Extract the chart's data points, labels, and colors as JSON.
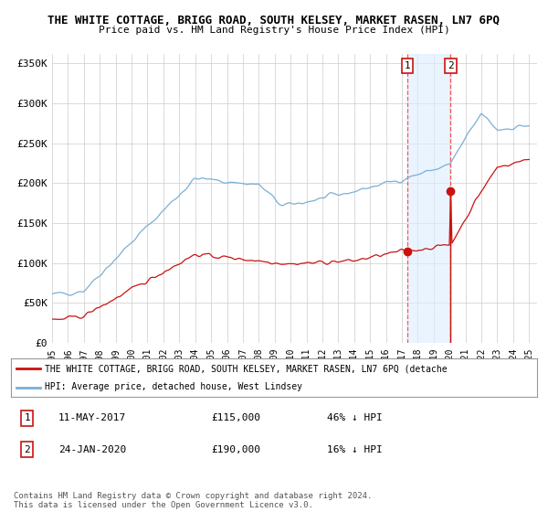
{
  "title": "THE WHITE COTTAGE, BRIGG ROAD, SOUTH KELSEY, MARKET RASEN, LN7 6PQ",
  "subtitle": "Price paid vs. HM Land Registry's House Price Index (HPI)",
  "ylabel_ticks": [
    "£0",
    "£50K",
    "£100K",
    "£150K",
    "£200K",
    "£250K",
    "£300K",
    "£350K"
  ],
  "ytick_values": [
    0,
    50000,
    100000,
    150000,
    200000,
    250000,
    300000,
    350000
  ],
  "ylim": [
    0,
    362000
  ],
  "xlim_start": 1995.0,
  "xlim_end": 2025.5,
  "hpi_color": "#7bafd4",
  "price_color": "#cc1111",
  "transaction1_x": 2017.36,
  "transaction1_y": 115000,
  "transaction2_x": 2020.07,
  "transaction2_y": 190000,
  "legend_line1": "THE WHITE COTTAGE, BRIGG ROAD, SOUTH KELSEY, MARKET RASEN, LN7 6PQ (detache",
  "legend_line2": "HPI: Average price, detached house, West Lindsey",
  "table_row1": [
    "1",
    "11-MAY-2017",
    "£115,000",
    "46% ↓ HPI"
  ],
  "table_row2": [
    "2",
    "24-JAN-2020",
    "£190,000",
    "16% ↓ HPI"
  ],
  "footnote": "Contains HM Land Registry data © Crown copyright and database right 2024.\nThis data is licensed under the Open Government Licence v3.0.",
  "bg_color": "#ffffff",
  "grid_color": "#cccccc",
  "shade_color": "#ddeeff"
}
